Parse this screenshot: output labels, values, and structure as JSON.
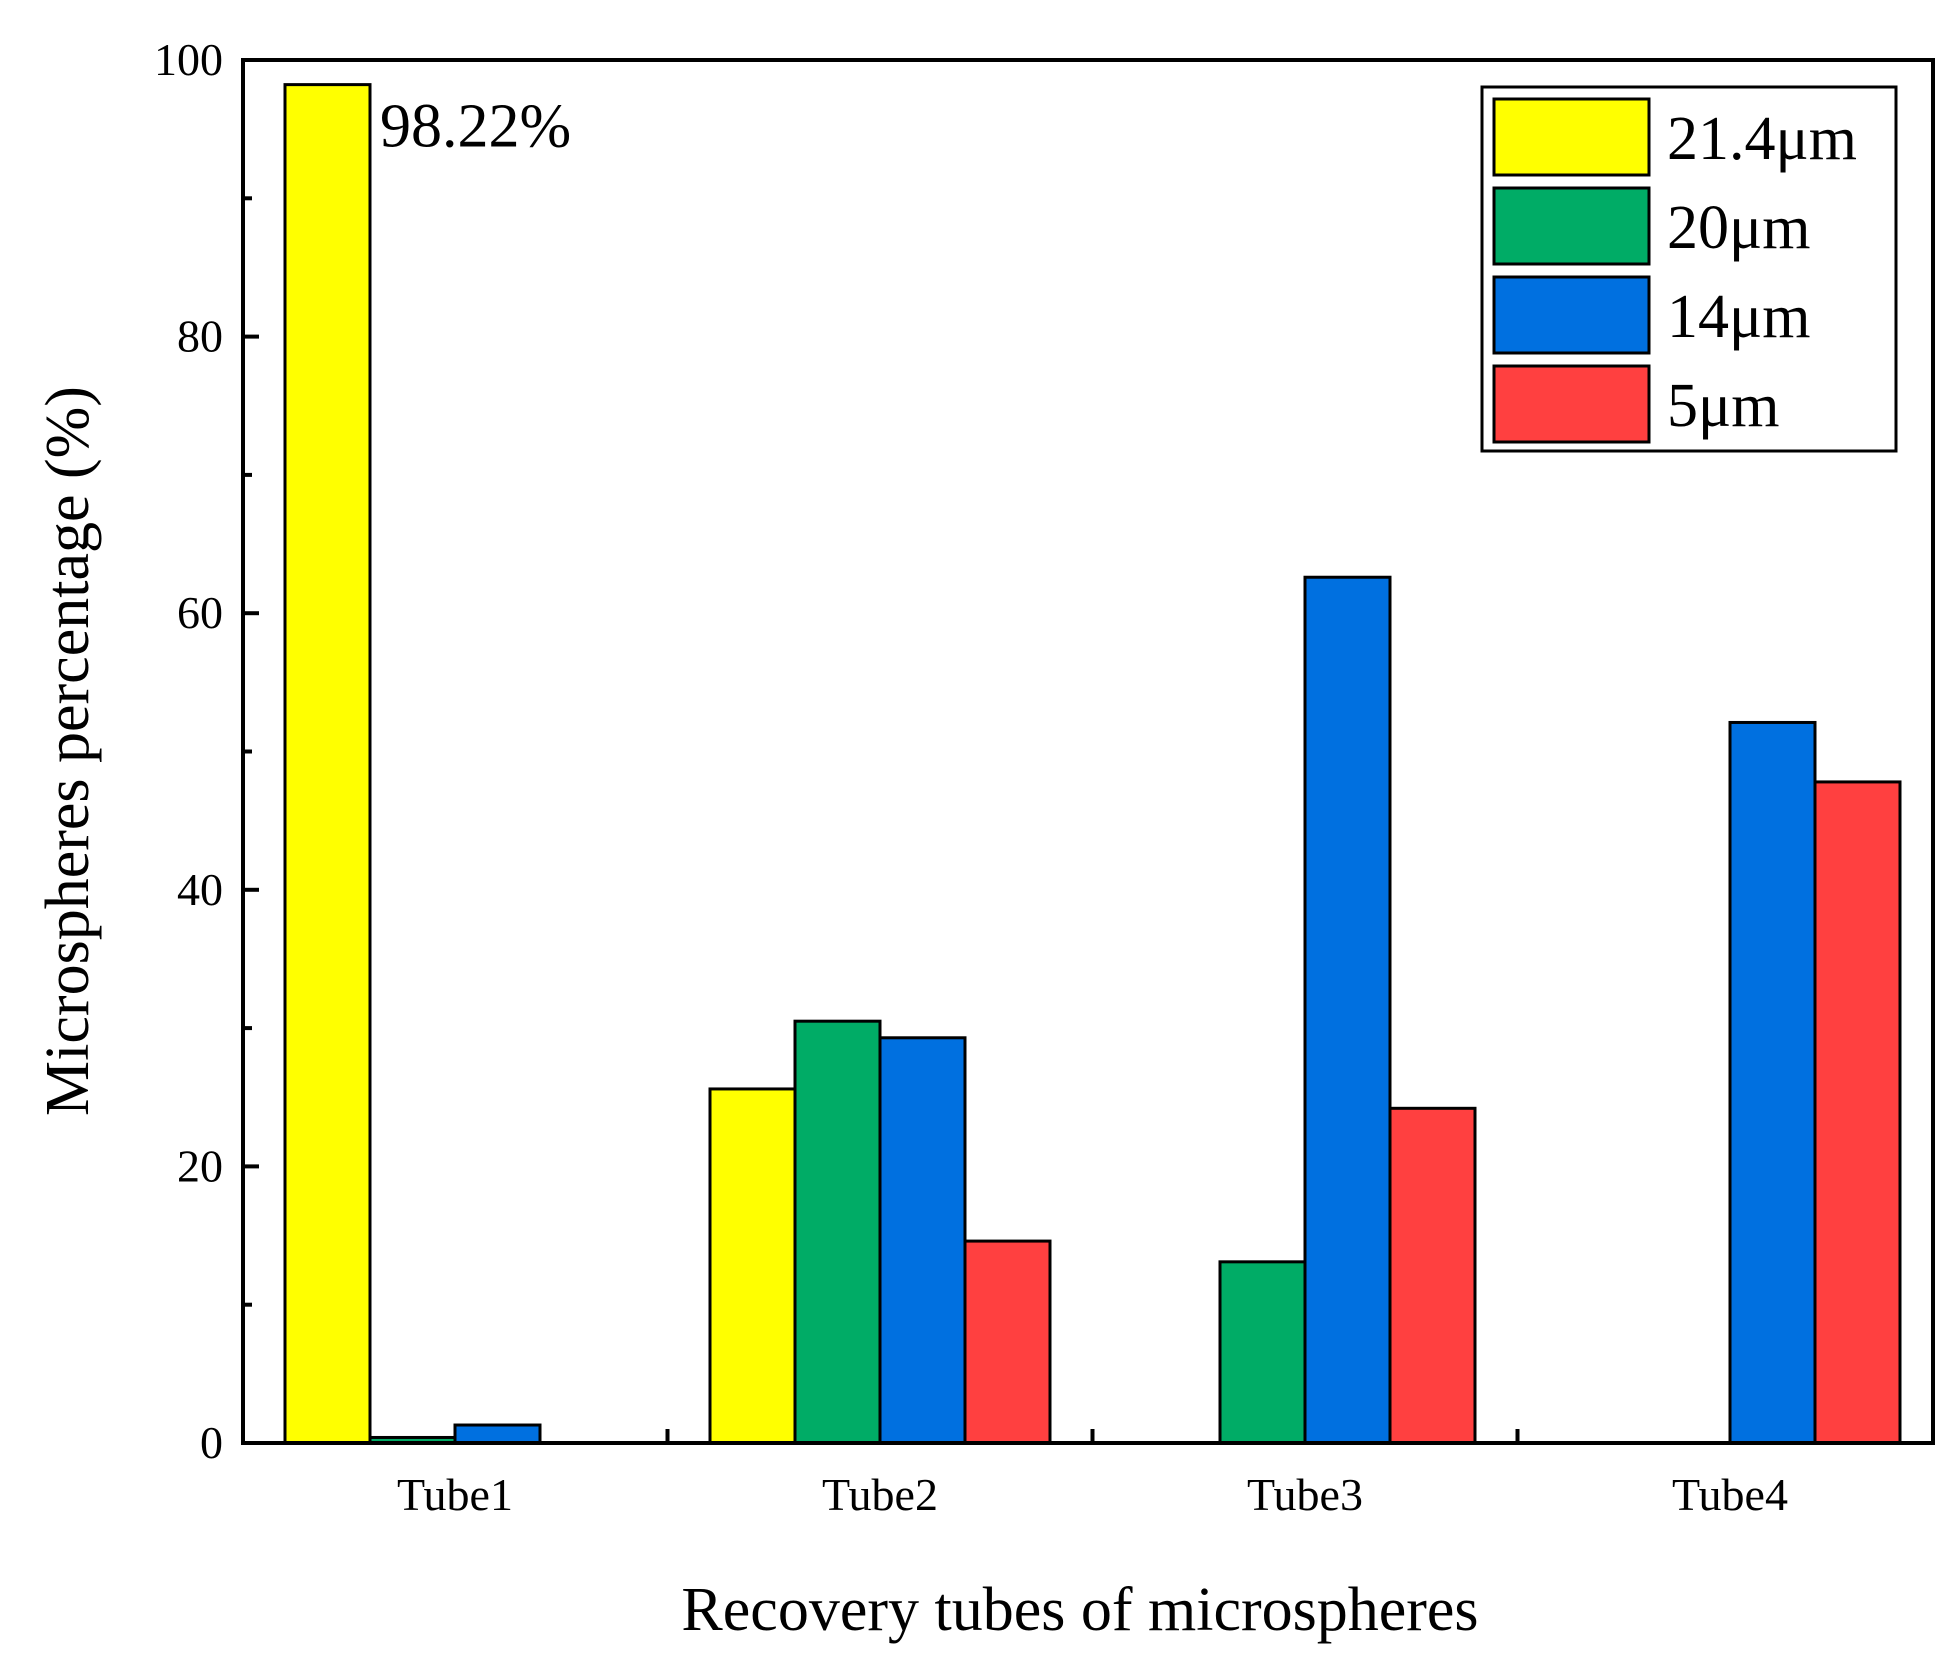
{
  "chart_data": {
    "type": "bar",
    "title": "",
    "xlabel": "Recovery tubes of microspheres",
    "ylabel": "Microspheres percentage (%)",
    "ylim": [
      0,
      100
    ],
    "yticks": [
      0,
      20,
      40,
      60,
      80,
      100
    ],
    "ytick_labels": [
      "0",
      "20",
      "40",
      "60",
      "80",
      "100"
    ],
    "categories": [
      "Tube1",
      "Tube2",
      "Tube3",
      "Tube4"
    ],
    "series": [
      {
        "name": "21.4μm",
        "color": "#ffff00",
        "values": [
          98.22,
          25.6,
          0,
          0
        ]
      },
      {
        "name": "20μm",
        "color": "#00ac66",
        "values": [
          0.4,
          30.5,
          13.1,
          0
        ]
      },
      {
        "name": "14μm",
        "color": "#0070e0",
        "values": [
          1.3,
          29.3,
          62.6,
          52.1
        ]
      },
      {
        "name": "5μm",
        "color": "#ff4040",
        "values": [
          0,
          14.6,
          24.2,
          47.8
        ]
      }
    ],
    "annotations": [
      {
        "text": "98.22%",
        "category": "Tube1",
        "series": "21.4μm"
      }
    ],
    "legend_position": "top-right",
    "grid": false
  }
}
